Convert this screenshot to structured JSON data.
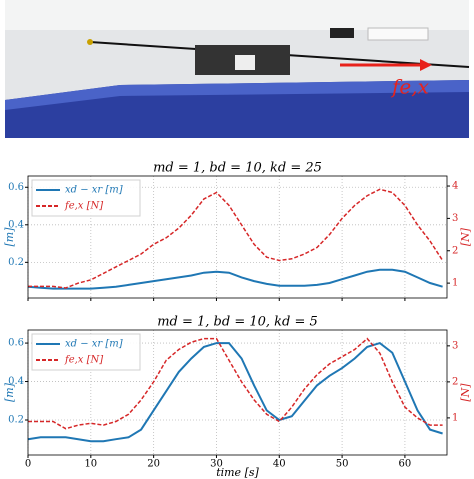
{
  "photo_label": "fe,x",
  "chart_data": [
    {
      "type": "line",
      "title": "md = 1, bd = 10, kd = 25",
      "y_label": "[m]",
      "y2_label": "[N]",
      "grid": true,
      "legend": "upper left",
      "x": [
        0,
        2,
        4,
        6,
        8,
        10,
        12,
        14,
        16,
        18,
        20,
        22,
        24,
        26,
        28,
        30,
        32,
        34,
        36,
        38,
        40,
        42,
        44,
        46,
        48,
        50,
        52,
        54,
        56,
        58,
        60,
        62,
        64,
        66
      ],
      "xlim": [
        0,
        66.7
      ],
      "xticks": [
        0,
        10,
        20,
        30,
        40,
        50,
        60
      ],
      "ylim": [
        0.01,
        0.66
      ],
      "yticks": [
        0.2,
        0.4,
        0.6
      ],
      "y2lim": [
        0.54,
        4.31
      ],
      "y2ticks": [
        1,
        2,
        3,
        4
      ],
      "series": [
        {
          "name": "xd − xr [m]",
          "color": "#1f77b4",
          "style": "solid",
          "values": [
            0.07,
            0.065,
            0.06,
            0.06,
            0.06,
            0.06,
            0.065,
            0.07,
            0.08,
            0.09,
            0.1,
            0.11,
            0.12,
            0.13,
            0.145,
            0.15,
            0.145,
            0.12,
            0.1,
            0.085,
            0.075,
            0.075,
            0.075,
            0.08,
            0.09,
            0.11,
            0.13,
            0.15,
            0.16,
            0.16,
            0.15,
            0.12,
            0.09,
            0.07
          ]
        },
        {
          "name": "fe,x [N]",
          "color": "#d62728",
          "style": "dashed",
          "axis": "y2",
          "values": [
            0.9,
            0.9,
            0.9,
            0.85,
            1.0,
            1.1,
            1.3,
            1.5,
            1.7,
            1.9,
            2.2,
            2.4,
            2.7,
            3.1,
            3.6,
            3.8,
            3.4,
            2.8,
            2.2,
            1.8,
            1.7,
            1.75,
            1.9,
            2.1,
            2.5,
            3.0,
            3.4,
            3.7,
            3.9,
            3.8,
            3.4,
            2.8,
            2.3,
            1.7
          ]
        }
      ]
    },
    {
      "type": "line",
      "title": "md = 1, bd = 10, kd = 5",
      "x_label": "time [s]",
      "y_label": "[m]",
      "y2_label": "[N]",
      "grid": true,
      "legend": "upper left",
      "x": [
        0,
        2,
        4,
        6,
        8,
        10,
        12,
        14,
        16,
        18,
        20,
        22,
        24,
        26,
        28,
        30,
        32,
        34,
        36,
        38,
        40,
        42,
        44,
        46,
        48,
        50,
        52,
        54,
        56,
        58,
        60,
        62,
        64,
        66
      ],
      "xlim": [
        0,
        66.7
      ],
      "xticks": [
        0,
        10,
        20,
        30,
        40,
        50,
        60
      ],
      "ylim": [
        0.018,
        0.668
      ],
      "yticks": [
        0.2,
        0.4,
        0.6
      ],
      "y2lim": [
        -0.03,
        3.44
      ],
      "y2ticks": [
        1,
        2,
        3
      ],
      "series": [
        {
          "name": "xd − xr [m]",
          "color": "#1f77b4",
          "style": "solid",
          "values": [
            0.1,
            0.11,
            0.11,
            0.11,
            0.1,
            0.09,
            0.09,
            0.1,
            0.11,
            0.15,
            0.25,
            0.35,
            0.45,
            0.52,
            0.58,
            0.6,
            0.6,
            0.52,
            0.38,
            0.25,
            0.2,
            0.22,
            0.3,
            0.38,
            0.43,
            0.47,
            0.52,
            0.58,
            0.6,
            0.55,
            0.4,
            0.25,
            0.15,
            0.13
          ]
        },
        {
          "name": "fe,x [N]",
          "color": "#d62728",
          "style": "dashed",
          "axis": "y2",
          "values": [
            0.9,
            0.9,
            0.9,
            0.7,
            0.8,
            0.85,
            0.8,
            0.9,
            1.1,
            1.5,
            2.0,
            2.6,
            2.9,
            3.1,
            3.2,
            3.2,
            2.6,
            2.0,
            1.5,
            1.1,
            0.9,
            1.3,
            1.8,
            2.2,
            2.5,
            2.7,
            2.9,
            3.2,
            2.8,
            2.0,
            1.3,
            1.0,
            0.8,
            0.8
          ]
        }
      ]
    }
  ]
}
